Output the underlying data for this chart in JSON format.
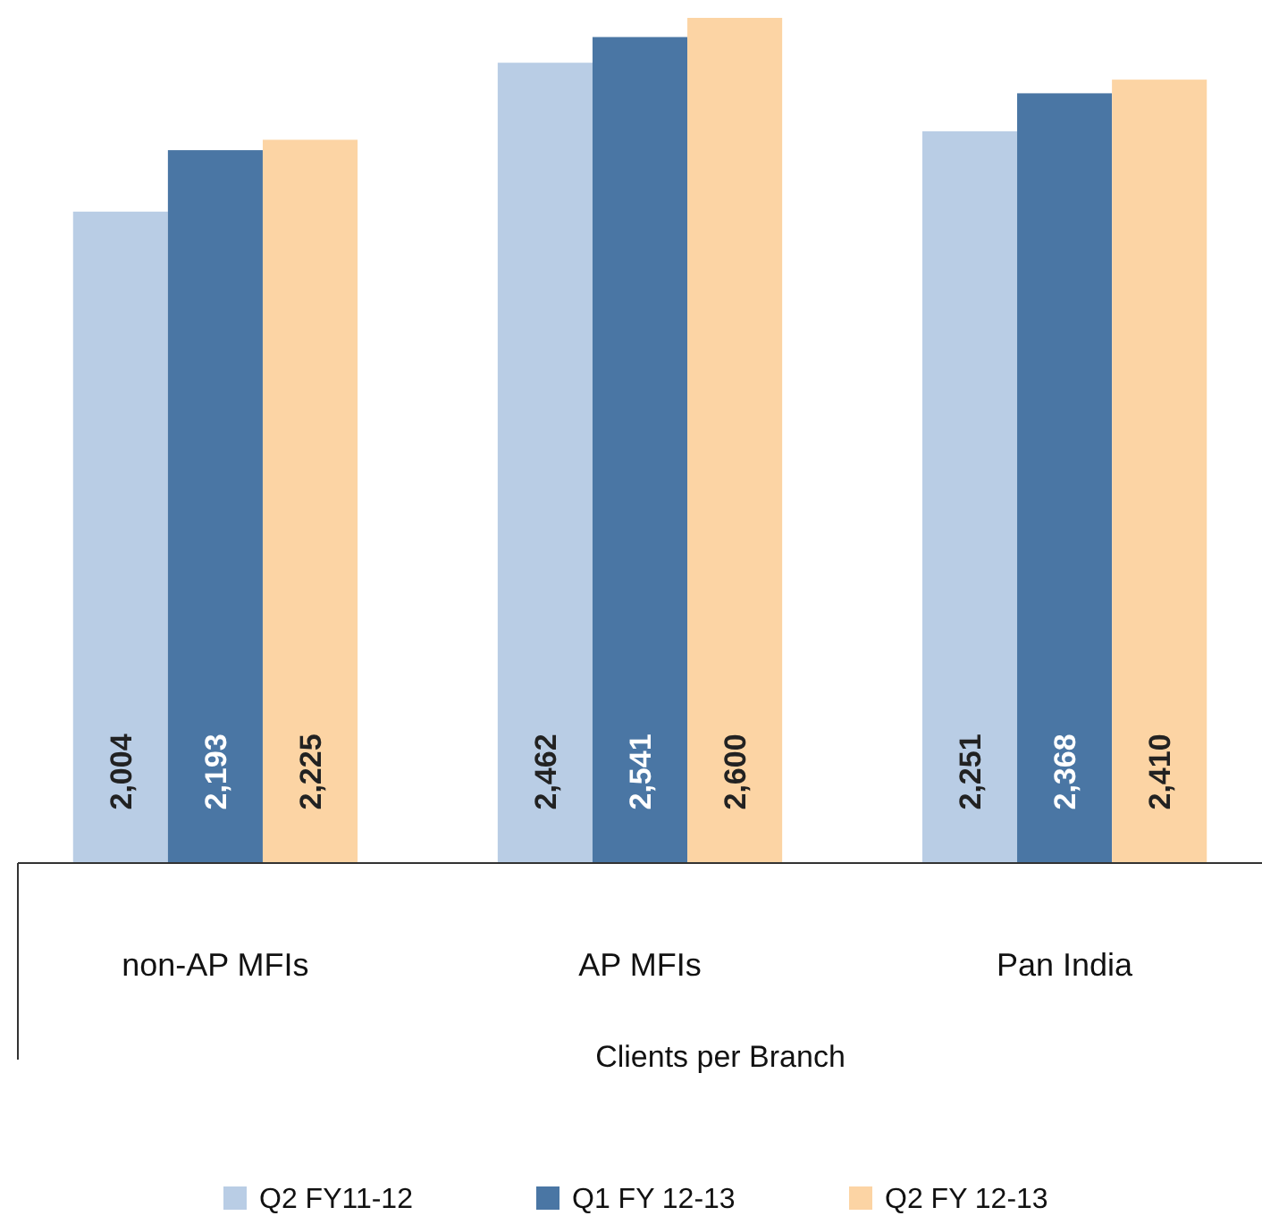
{
  "chart_data": {
    "type": "bar",
    "xlabel": "Clients per Branch",
    "categories": [
      "non-AP MFIs",
      "AP MFIs",
      "Pan India"
    ],
    "series": [
      {
        "name": "Q2 FY11-12",
        "color": "#b9cde5",
        "values": [
          2004,
          2462,
          2251
        ],
        "value_labels": [
          "2,004",
          "2,462",
          "2,251"
        ]
      },
      {
        "name": "Q1 FY 12-13",
        "color": "#4a76a4",
        "values": [
          2193,
          2541,
          2368
        ],
        "value_labels": [
          "2,193",
          "2,541",
          "2,368"
        ]
      },
      {
        "name": "Q2 FY 12-13",
        "color": "#fcd4a4",
        "values": [
          2225,
          2600,
          2410
        ],
        "value_labels": [
          "2,225",
          "2,600",
          "2,410"
        ]
      }
    ],
    "legend": "bottom",
    "tick_labels": "x"
  }
}
